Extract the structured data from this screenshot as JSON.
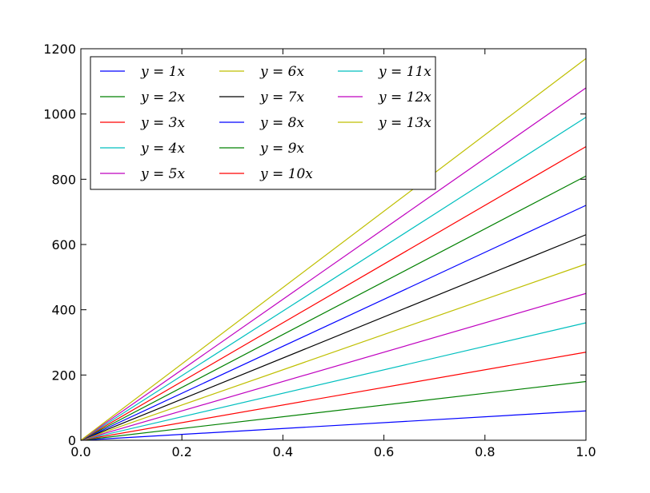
{
  "chart_data": {
    "type": "line",
    "title": "",
    "xlabel": "",
    "ylabel": "",
    "xlim": [
      0.0,
      1.0
    ],
    "ylim": [
      0,
      1200
    ],
    "x": [
      0.0,
      1.0
    ],
    "x_ticks": [
      0.0,
      0.2,
      0.4,
      0.6,
      0.8,
      1.0
    ],
    "x_tick_labels": [
      "0.0",
      "0.2",
      "0.4",
      "0.6",
      "0.8",
      "1.0"
    ],
    "y_ticks": [
      0,
      200,
      400,
      600,
      800,
      1000,
      1200
    ],
    "y_tick_labels": [
      "0",
      "200",
      "400",
      "600",
      "800",
      "1000",
      "1200"
    ],
    "grid": false,
    "legend": {
      "placement": "upper-left",
      "columns": 3
    },
    "series": [
      {
        "name": "y = 1x",
        "values": [
          0,
          90
        ],
        "color": "#0000ff"
      },
      {
        "name": "y = 2x",
        "values": [
          0,
          180
        ],
        "color": "#008000"
      },
      {
        "name": "y = 3x",
        "values": [
          0,
          270
        ],
        "color": "#ff0000"
      },
      {
        "name": "y = 4x",
        "values": [
          0,
          360
        ],
        "color": "#00bfbf"
      },
      {
        "name": "y = 5x",
        "values": [
          0,
          450
        ],
        "color": "#bf00bf"
      },
      {
        "name": "y = 6x",
        "values": [
          0,
          540
        ],
        "color": "#bfbf00"
      },
      {
        "name": "y = 7x",
        "values": [
          0,
          630
        ],
        "color": "#000000"
      },
      {
        "name": "y = 8x",
        "values": [
          0,
          720
        ],
        "color": "#0000ff"
      },
      {
        "name": "y = 9x",
        "values": [
          0,
          810
        ],
        "color": "#008000"
      },
      {
        "name": "y = 10x",
        "values": [
          0,
          900
        ],
        "color": "#ff0000"
      },
      {
        "name": "y = 11x",
        "values": [
          0,
          990
        ],
        "color": "#00bfbf"
      },
      {
        "name": "y = 12x",
        "values": [
          0,
          1080
        ],
        "color": "#bf00bf"
      },
      {
        "name": "y = 13x",
        "values": [
          0,
          1170
        ],
        "color": "#bfbf00"
      }
    ]
  }
}
